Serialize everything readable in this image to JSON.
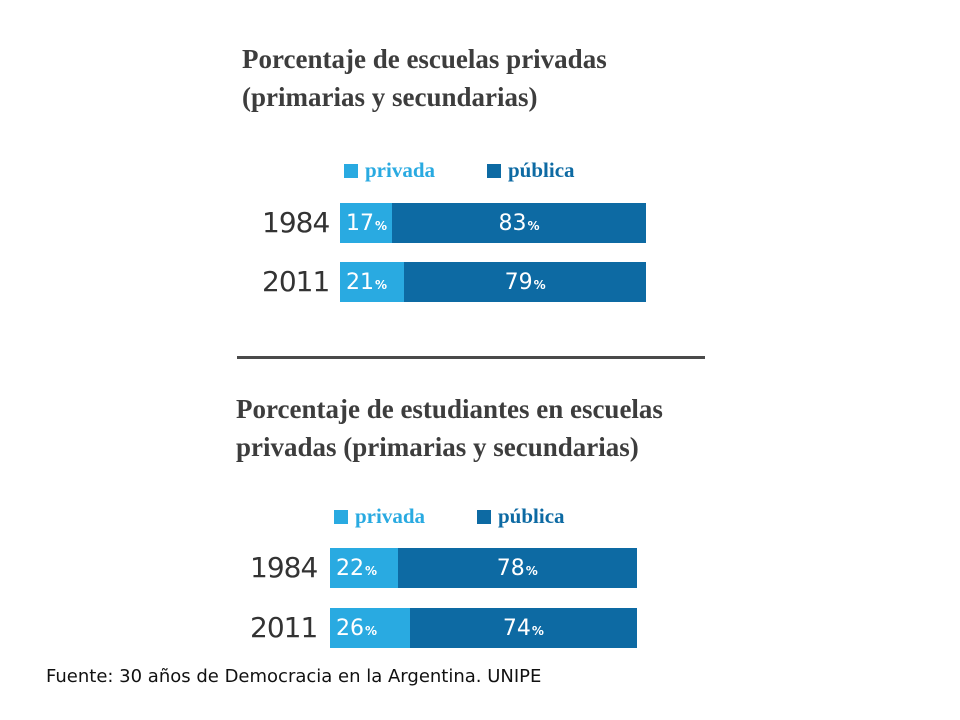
{
  "colors": {
    "privada": "#29aae1",
    "publica": "#0d6aa3"
  },
  "chart_data": [
    {
      "type": "bar",
      "stacked": true,
      "orientation": "horizontal",
      "title_lines": [
        "Porcentaje de escuelas privadas",
        "(primarias y secundarias)"
      ],
      "categories": [
        "1984",
        "2011"
      ],
      "series": [
        {
          "name": "privada",
          "values": [
            17,
            21
          ]
        },
        {
          "name": "pública",
          "values": [
            83,
            79
          ]
        }
      ],
      "value_suffix": "%",
      "xlim": [
        0,
        100
      ]
    },
    {
      "type": "bar",
      "stacked": true,
      "orientation": "horizontal",
      "title_lines": [
        "Porcentaje de estudiantes en escuelas",
        "privadas (primarias y secundarias)"
      ],
      "categories": [
        "1984",
        "2011"
      ],
      "series": [
        {
          "name": "privada",
          "values": [
            22,
            26
          ]
        },
        {
          "name": "pública",
          "values": [
            78,
            74
          ]
        }
      ],
      "value_suffix": "%",
      "xlim": [
        0,
        100
      ]
    }
  ],
  "source": "Fuente: 30 años de Democracia en la Argentina. UNIPE"
}
